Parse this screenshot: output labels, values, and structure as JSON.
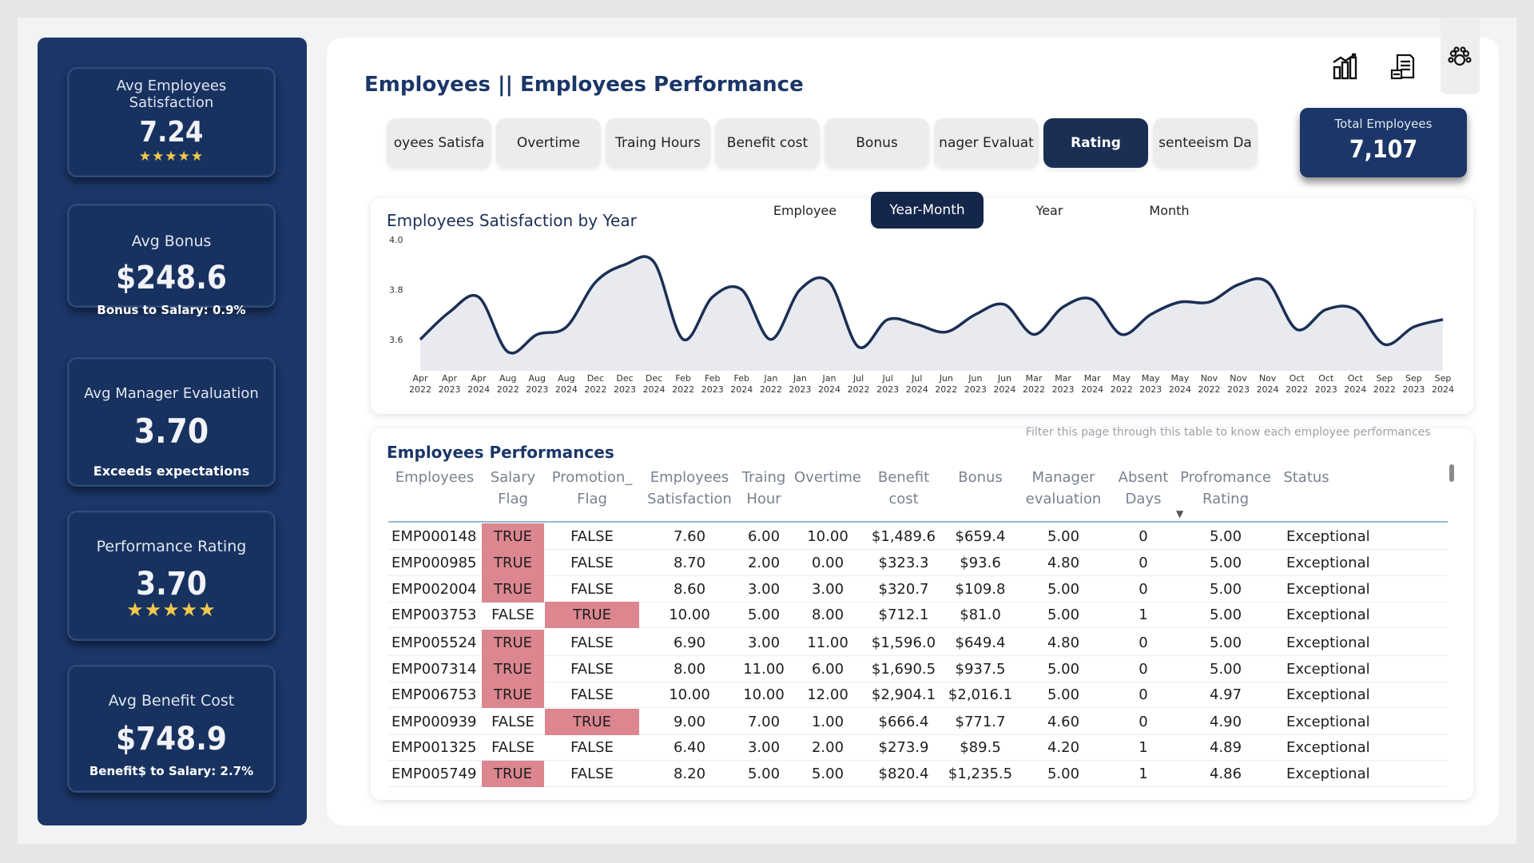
{
  "sidebar": {
    "kpis": [
      {
        "title": "Avg Employees Satisfaction",
        "value": "7.24",
        "stars": "★★★★★",
        "sub": ""
      },
      {
        "title": "Avg Bonus",
        "value": "$248.6",
        "stars": "",
        "sub": "Bonus to Salary: 0.9%"
      },
      {
        "title": "Avg Manager Evaluation",
        "value": "3.70",
        "stars": "",
        "sub": "Exceeds expectations"
      },
      {
        "title": "Performance Rating",
        "value": "3.70",
        "stars": "★★★★★",
        "sub": ""
      },
      {
        "title": "Avg Benefit Cost",
        "value": "$748.9",
        "stars": "",
        "sub": "Benefit$ to Salary: 2.7%"
      }
    ]
  },
  "header": {
    "title": "Employees || Employees Performance",
    "icons": [
      "bar-chart-icon",
      "document-export-icon",
      "paw-icon"
    ]
  },
  "tabs": [
    "oyees Satisfa",
    "Overtime",
    "Traing Hours",
    "Benefit cost",
    "Bonus",
    "nager Evaluat",
    "Rating",
    "senteeism Da"
  ],
  "active_tab": "Rating",
  "total_card": {
    "label": "Total Employees",
    "value": "7,107"
  },
  "chart": {
    "title": "Employees Satisfaction by Year",
    "toggles": [
      "Employee",
      "Year-Month",
      "Year",
      "Month"
    ],
    "active_toggle": "Year-Month",
    "colors": {
      "line": "#1b2f55",
      "area": "#e8eaef"
    }
  },
  "chart_data": {
    "type": "area",
    "title": "Employees Satisfaction by Year",
    "xlabel": "",
    "ylabel": "",
    "ylim": [
      3.5,
      4.0
    ],
    "yticks": [
      "4.0",
      "3.8",
      "3.6"
    ],
    "x": [
      [
        "Apr",
        "2022"
      ],
      [
        "Apr",
        "2023"
      ],
      [
        "Apr",
        "2024"
      ],
      [
        "Aug",
        "2022"
      ],
      [
        "Aug",
        "2023"
      ],
      [
        "Aug",
        "2024"
      ],
      [
        "Dec",
        "2022"
      ],
      [
        "Dec",
        "2023"
      ],
      [
        "Dec",
        "2024"
      ],
      [
        "Feb",
        "2022"
      ],
      [
        "Feb",
        "2023"
      ],
      [
        "Feb",
        "2024"
      ],
      [
        "Jan",
        "2022"
      ],
      [
        "Jan",
        "2023"
      ],
      [
        "Jan",
        "2024"
      ],
      [
        "Jul",
        "2022"
      ],
      [
        "Jul",
        "2023"
      ],
      [
        "Jul",
        "2024"
      ],
      [
        "Jun",
        "2022"
      ],
      [
        "Jun",
        "2023"
      ],
      [
        "Jun",
        "2024"
      ],
      [
        "Mar",
        "2022"
      ],
      [
        "Mar",
        "2023"
      ],
      [
        "Mar",
        "2024"
      ],
      [
        "May",
        "2022"
      ],
      [
        "May",
        "2023"
      ],
      [
        "May",
        "2024"
      ],
      [
        "Nov",
        "2022"
      ],
      [
        "Nov",
        "2023"
      ],
      [
        "Nov",
        "2024"
      ],
      [
        "Oct",
        "2022"
      ],
      [
        "Oct",
        "2023"
      ],
      [
        "Oct",
        "2024"
      ],
      [
        "Sep",
        "2022"
      ],
      [
        "Sep",
        "2023"
      ],
      [
        "Sep",
        "2024"
      ]
    ],
    "series": [
      {
        "name": "",
        "values": [
          3.6,
          3.71,
          3.77,
          3.55,
          3.62,
          3.65,
          3.83,
          3.9,
          3.91,
          3.6,
          3.77,
          3.8,
          3.6,
          3.8,
          3.83,
          3.57,
          3.68,
          3.66,
          3.63,
          3.7,
          3.74,
          3.62,
          3.73,
          3.76,
          3.62,
          3.7,
          3.75,
          3.75,
          3.82,
          3.83,
          3.64,
          3.72,
          3.72,
          3.58,
          3.65,
          3.68
        ]
      }
    ]
  },
  "table": {
    "note": "Filter this page through this table to know each employee performances",
    "title": "Employees Performances",
    "headers": [
      [
        "Employees",
        ""
      ],
      [
        "Salary",
        "Flag"
      ],
      [
        "Promotion_",
        "Flag"
      ],
      [
        "Employees",
        "Satisfaction"
      ],
      [
        "Traing",
        "Hour"
      ],
      [
        "Overtime",
        ""
      ],
      [
        "Benefit",
        "cost"
      ],
      [
        "Bonus",
        ""
      ],
      [
        "Manager",
        "evaluation"
      ],
      [
        "Absent",
        "Days"
      ],
      [
        "Profromance",
        "Rating"
      ],
      [
        "Status",
        ""
      ]
    ],
    "sort_indicator": "▼",
    "highlight_color": "#dc8690",
    "rows": [
      [
        "EMP000148",
        "TRUE",
        "FALSE",
        "7.60",
        "6.00",
        "10.00",
        "$1,489.6",
        "$659.4",
        "5.00",
        "0",
        "5.00",
        "Exceptional"
      ],
      [
        "EMP000985",
        "TRUE",
        "FALSE",
        "8.70",
        "2.00",
        "0.00",
        "$323.3",
        "$93.6",
        "4.80",
        "0",
        "5.00",
        "Exceptional"
      ],
      [
        "EMP002004",
        "TRUE",
        "FALSE",
        "8.60",
        "3.00",
        "3.00",
        "$320.7",
        "$109.8",
        "5.00",
        "0",
        "5.00",
        "Exceptional"
      ],
      [
        "EMP003753",
        "FALSE",
        "TRUE",
        "10.00",
        "5.00",
        "8.00",
        "$712.1",
        "$81.0",
        "5.00",
        "1",
        "5.00",
        "Exceptional"
      ],
      [
        "EMP005524",
        "TRUE",
        "FALSE",
        "6.90",
        "3.00",
        "11.00",
        "$1,596.0",
        "$649.4",
        "4.80",
        "0",
        "5.00",
        "Exceptional"
      ],
      [
        "EMP007314",
        "TRUE",
        "FALSE",
        "8.00",
        "11.00",
        "6.00",
        "$1,690.5",
        "$937.5",
        "5.00",
        "0",
        "5.00",
        "Exceptional"
      ],
      [
        "EMP006753",
        "TRUE",
        "FALSE",
        "10.00",
        "10.00",
        "12.00",
        "$2,904.1",
        "$2,016.1",
        "5.00",
        "0",
        "4.97",
        "Exceptional"
      ],
      [
        "EMP000939",
        "FALSE",
        "TRUE",
        "9.00",
        "7.00",
        "1.00",
        "$666.4",
        "$771.7",
        "4.60",
        "0",
        "4.90",
        "Exceptional"
      ],
      [
        "EMP001325",
        "FALSE",
        "FALSE",
        "6.40",
        "3.00",
        "2.00",
        "$273.9",
        "$89.5",
        "4.20",
        "1",
        "4.89",
        "Exceptional"
      ],
      [
        "EMP005749",
        "TRUE",
        "FALSE",
        "8.20",
        "5.00",
        "5.00",
        "$820.4",
        "$1,235.5",
        "5.00",
        "1",
        "4.86",
        "Exceptional"
      ]
    ]
  }
}
